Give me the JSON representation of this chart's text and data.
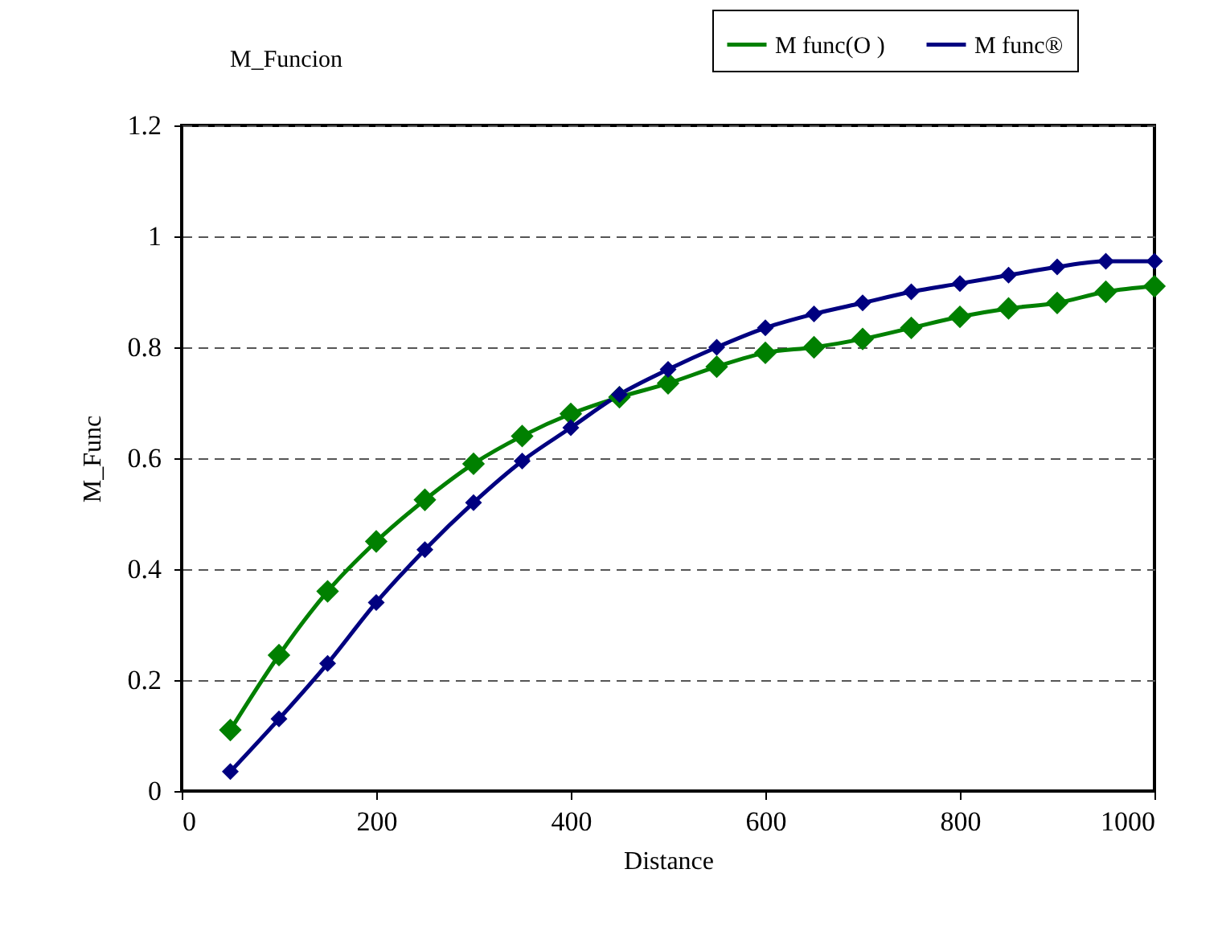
{
  "chart_data": {
    "type": "line",
    "title": "M_Funcion",
    "xlabel": "Distance",
    "ylabel": "M_Func",
    "x": [
      50,
      100,
      150,
      200,
      250,
      300,
      350,
      400,
      450,
      500,
      550,
      600,
      650,
      700,
      750,
      800,
      850,
      900,
      950,
      1000
    ],
    "series": [
      {
        "name": "M func(O )",
        "color": "#008000",
        "values": [
          0.11,
          0.245,
          0.36,
          0.45,
          0.525,
          0.59,
          0.64,
          0.68,
          0.71,
          0.735,
          0.765,
          0.79,
          0.8,
          0.815,
          0.835,
          0.855,
          0.87,
          0.88,
          0.9,
          0.91
        ]
      },
      {
        "name": "M func®",
        "color": "#000080",
        "values": [
          0.035,
          0.13,
          0.23,
          0.34,
          0.435,
          0.52,
          0.595,
          0.655,
          0.715,
          0.76,
          0.8,
          0.835,
          0.86,
          0.88,
          0.9,
          0.915,
          0.93,
          0.945,
          0.955,
          0.955
        ]
      }
    ],
    "xlim": [
      0,
      1000
    ],
    "xticks": [
      0,
      200,
      400,
      600,
      800,
      1000
    ],
    "ylim": [
      0,
      1.2
    ],
    "yticks": [
      0,
      0.2,
      0.4,
      0.6,
      0.8,
      1,
      1.2
    ],
    "grid": "y",
    "legend": "top right",
    "marker": "diamond",
    "line_style": "solid"
  }
}
